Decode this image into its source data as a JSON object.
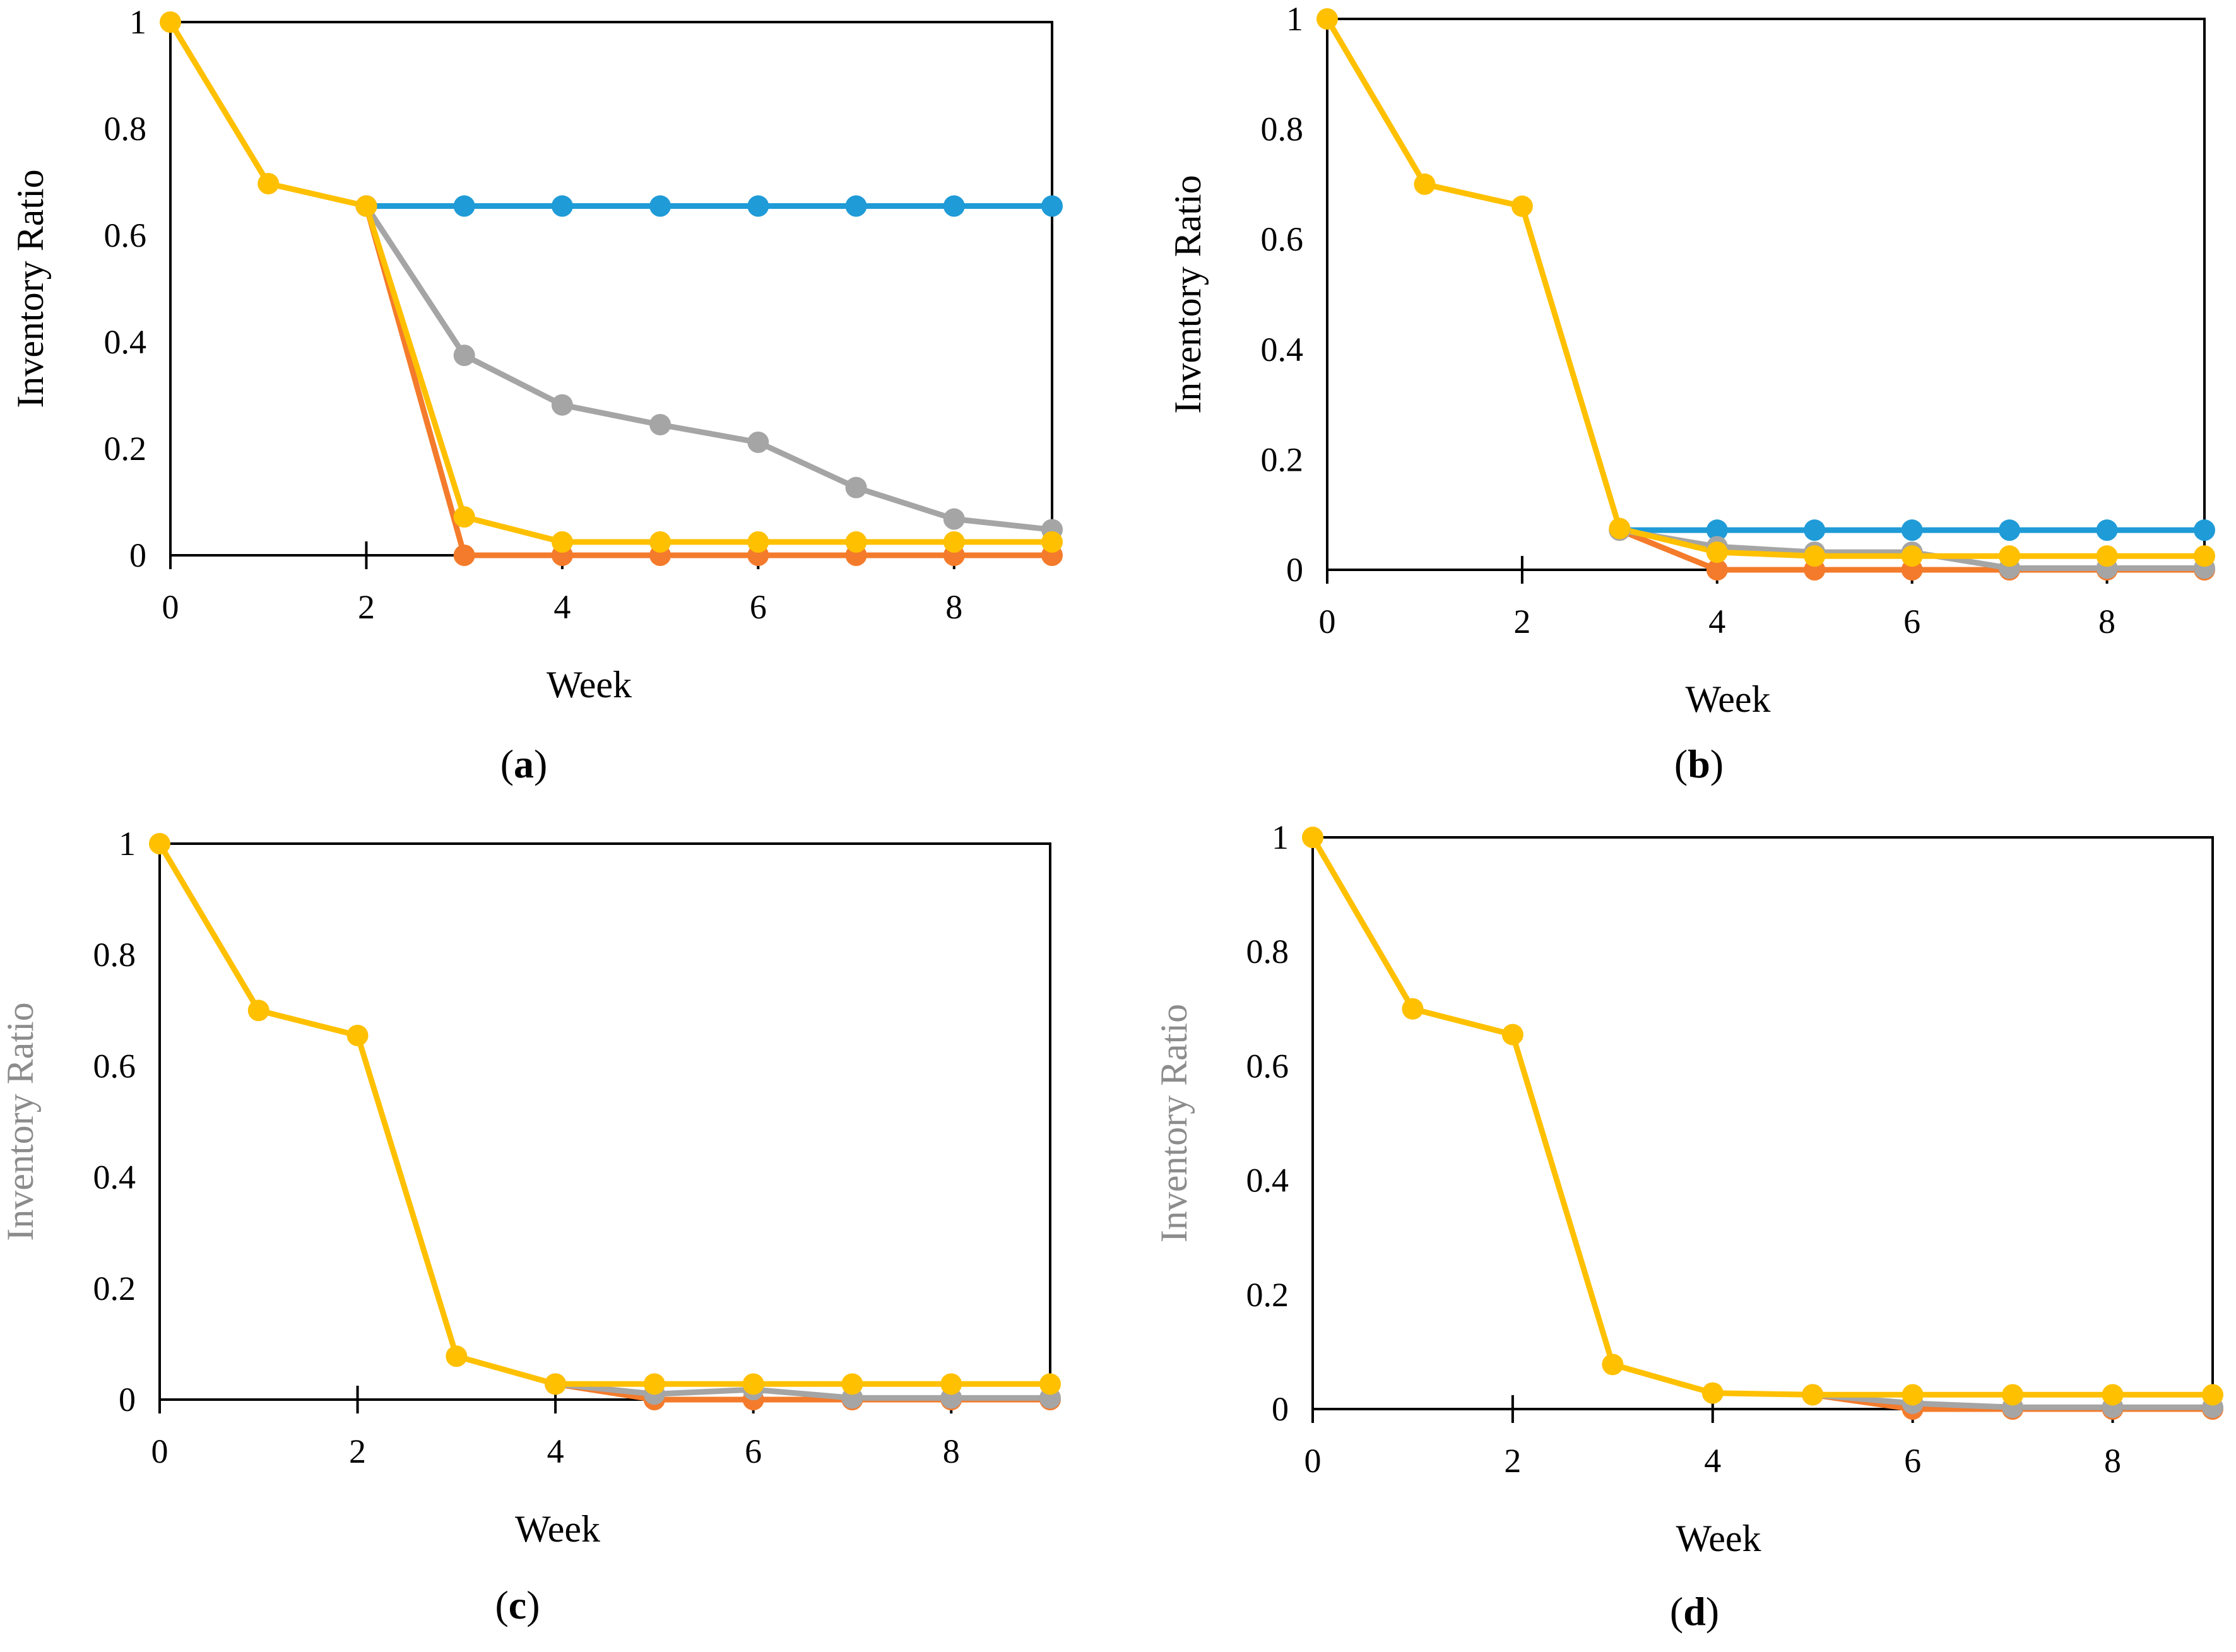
{
  "figure": {
    "colors": {
      "blue": "#1f9bd7",
      "orange": "#f47b2b",
      "gray": "#a5a5a5",
      "yellow": "#ffc000",
      "axis": "#000000",
      "gray_label": "#8c8c8c"
    }
  },
  "chart_data": [
    {
      "type": "line",
      "panel": "a",
      "caption_open": "(",
      "caption_letter": "a",
      "caption_close": ")",
      "xlabel": "Week",
      "ylabel": "Inventory Ratio",
      "ylabel_color": "#000000",
      "xlim": [
        0,
        9
      ],
      "ylim": [
        0,
        1
      ],
      "xticks": [
        0,
        2,
        4,
        6,
        8
      ],
      "yticks": [
        0,
        0.2,
        0.4,
        0.6,
        0.8,
        1
      ],
      "ytick_labels": [
        "0",
        "0.2",
        "0.4",
        "0.6",
        "0.8",
        "1"
      ],
      "series": [
        {
          "color": "#1f9bd7",
          "x": [
            2,
            3,
            4,
            5,
            6,
            7,
            8,
            9
          ],
          "values": [
            0.655,
            0.655,
            0.655,
            0.655,
            0.655,
            0.655,
            0.655,
            0.655
          ]
        },
        {
          "color": "#f47b2b",
          "x": [
            2,
            3,
            4,
            5,
            6,
            7,
            8,
            9
          ],
          "values": [
            0.655,
            0.0,
            0.0,
            0.0,
            0.0,
            0.0,
            0.0,
            0.0
          ]
        },
        {
          "color": "#a5a5a5",
          "x": [
            2,
            3,
            4,
            5,
            6,
            7,
            8,
            9
          ],
          "values": [
            0.655,
            0.375,
            0.282,
            0.245,
            0.212,
            0.127,
            0.068,
            0.048
          ]
        },
        {
          "color": "#ffc000",
          "x": [
            0,
            1,
            2,
            3,
            4,
            5,
            6,
            7,
            8,
            9
          ],
          "values": [
            1.0,
            0.697,
            0.655,
            0.072,
            0.025,
            0.025,
            0.025,
            0.025,
            0.025,
            0.025
          ]
        }
      ]
    },
    {
      "type": "line",
      "panel": "b",
      "caption_open": "(",
      "caption_letter": "b",
      "caption_close": ")",
      "xlabel": "Week",
      "ylabel": "Inventory Ratio",
      "ylabel_color": "#000000",
      "xlim": [
        0,
        9
      ],
      "ylim": [
        0,
        1
      ],
      "xticks": [
        0,
        2,
        4,
        6,
        8
      ],
      "yticks": [
        0,
        0.2,
        0.4,
        0.6,
        0.8,
        1
      ],
      "ytick_labels": [
        "0",
        "0.2",
        "0.4",
        "0.6",
        "0.8",
        "1"
      ],
      "series": [
        {
          "color": "#1f9bd7",
          "x": [
            3,
            4,
            5,
            6,
            7,
            8,
            9
          ],
          "values": [
            0.072,
            0.072,
            0.072,
            0.072,
            0.072,
            0.072,
            0.072
          ]
        },
        {
          "color": "#f47b2b",
          "x": [
            3,
            4,
            5,
            6,
            7,
            8,
            9
          ],
          "values": [
            0.072,
            0.0,
            0.0,
            0.0,
            0.0,
            0.0,
            0.0
          ]
        },
        {
          "color": "#a5a5a5",
          "x": [
            3,
            4,
            5,
            6,
            7,
            8,
            9
          ],
          "values": [
            0.072,
            0.042,
            0.032,
            0.032,
            0.003,
            0.003,
            0.003
          ]
        },
        {
          "color": "#ffc000",
          "x": [
            0,
            1,
            2,
            3,
            4,
            5,
            6,
            7,
            8,
            9
          ],
          "values": [
            1.0,
            0.7,
            0.66,
            0.075,
            0.032,
            0.025,
            0.025,
            0.025,
            0.025,
            0.025
          ]
        }
      ]
    },
    {
      "type": "line",
      "panel": "c",
      "caption_open": "(",
      "caption_letter": "c",
      "caption_close": ")",
      "xlabel": "Week",
      "ylabel": "Inventory Ratio",
      "ylabel_color": "#8c8c8c",
      "xlim": [
        0,
        9
      ],
      "ylim": [
        0,
        1
      ],
      "xticks": [
        0,
        2,
        4,
        6,
        8
      ],
      "yticks": [
        0,
        0.2,
        0.4,
        0.6,
        0.8,
        1
      ],
      "ytick_labels": [
        "0",
        "0.2",
        "0.4",
        "0.6",
        "0.8",
        "1"
      ],
      "series": [
        {
          "color": "#f47b2b",
          "x": [
            4,
            5,
            6,
            7,
            8,
            9
          ],
          "values": [
            0.028,
            0.0,
            0.0,
            0.0,
            0.0,
            0.0
          ]
        },
        {
          "color": "#a5a5a5",
          "x": [
            4,
            5,
            6,
            7,
            8,
            9
          ],
          "values": [
            0.028,
            0.01,
            0.018,
            0.003,
            0.003,
            0.003
          ]
        },
        {
          "color": "#ffc000",
          "x": [
            0,
            1,
            2,
            3,
            4,
            5,
            6,
            7,
            8,
            9
          ],
          "values": [
            1.0,
            0.7,
            0.655,
            0.078,
            0.028,
            0.028,
            0.028,
            0.028,
            0.028,
            0.028
          ]
        }
      ]
    },
    {
      "type": "line",
      "panel": "d",
      "caption_open": "(",
      "caption_letter": "d",
      "caption_close": ")",
      "xlabel": "Week",
      "ylabel": "Inventory Ratio",
      "ylabel_color": "#8c8c8c",
      "xlim": [
        0,
        9
      ],
      "ylim": [
        0,
        1
      ],
      "xticks": [
        0,
        2,
        4,
        6,
        8
      ],
      "yticks": [
        0,
        0.2,
        0.4,
        0.6,
        0.8,
        1
      ],
      "ytick_labels": [
        "0",
        "0.2",
        "0.4",
        "0.6",
        "0.8",
        "1"
      ],
      "series": [
        {
          "color": "#f47b2b",
          "x": [
            5,
            6,
            7,
            8,
            9
          ],
          "values": [
            0.025,
            0.0,
            0.0,
            0.0,
            0.0
          ]
        },
        {
          "color": "#a5a5a5",
          "x": [
            5,
            6,
            7,
            8,
            9
          ],
          "values": [
            0.025,
            0.01,
            0.003,
            0.003,
            0.003
          ]
        },
        {
          "color": "#ffc000",
          "x": [
            0,
            1,
            2,
            3,
            4,
            5,
            6,
            7,
            8,
            9
          ],
          "values": [
            1.0,
            0.7,
            0.655,
            0.078,
            0.028,
            0.025,
            0.025,
            0.025,
            0.025,
            0.025
          ]
        }
      ]
    }
  ]
}
